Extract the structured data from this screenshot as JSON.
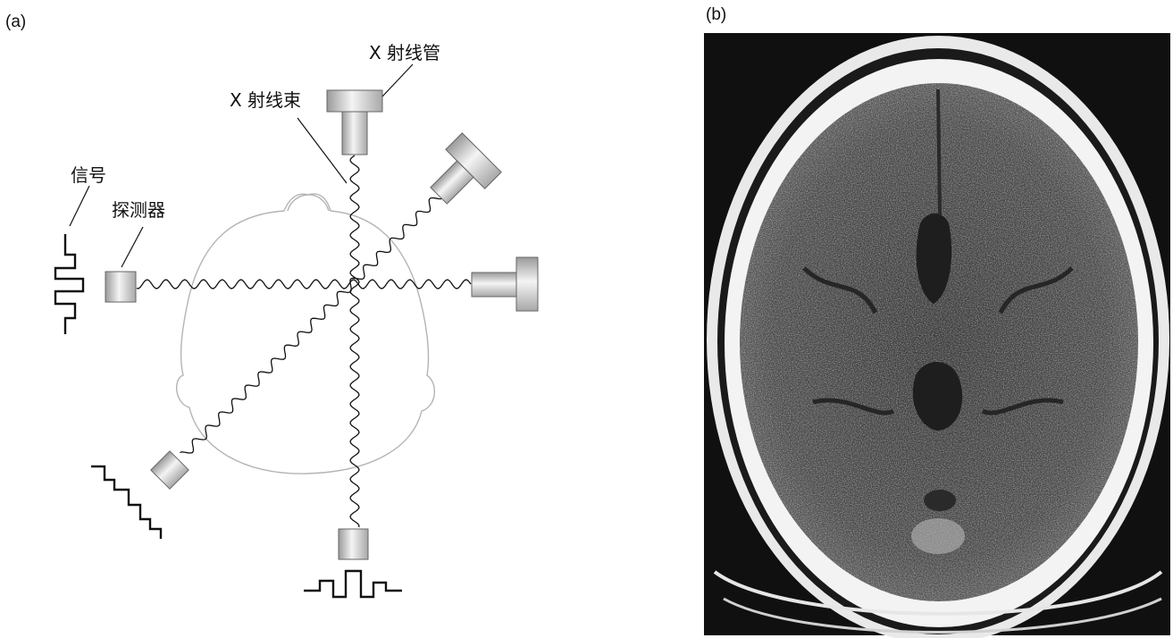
{
  "panel_a": {
    "label": "(a)",
    "labels": {
      "tube": "X 射线管",
      "beam": "X 射线束",
      "signal": "信号",
      "detector": "探测器"
    }
  },
  "panel_b": {
    "label": "(b)"
  },
  "colors": {
    "ink": "#111111",
    "head_outline": "#b4b4b4",
    "device_fill": "#cfcfcf",
    "ct_background": "#101010",
    "skull": "#f2f2f2"
  }
}
